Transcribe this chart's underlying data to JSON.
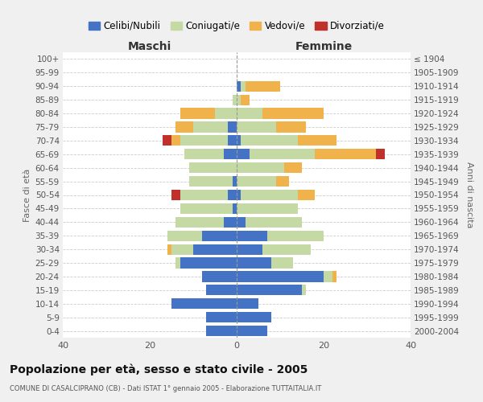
{
  "age_groups": [
    "100+",
    "95-99",
    "90-94",
    "85-89",
    "80-84",
    "75-79",
    "70-74",
    "65-69",
    "60-64",
    "55-59",
    "50-54",
    "45-49",
    "40-44",
    "35-39",
    "30-34",
    "25-29",
    "20-24",
    "15-19",
    "10-14",
    "5-9",
    "0-4"
  ],
  "birth_years": [
    "≤ 1904",
    "1905-1909",
    "1910-1914",
    "1915-1919",
    "1920-1924",
    "1925-1929",
    "1930-1934",
    "1935-1939",
    "1940-1944",
    "1945-1949",
    "1950-1954",
    "1955-1959",
    "1960-1964",
    "1965-1969",
    "1970-1974",
    "1975-1979",
    "1980-1984",
    "1985-1989",
    "1990-1994",
    "1995-1999",
    "2000-2004"
  ],
  "colors": {
    "celibi": "#4472C4",
    "coniugati": "#C5D9A5",
    "vedovi": "#F0B34C",
    "divorziati": "#C0312B"
  },
  "maschi": {
    "celibi": [
      0,
      0,
      0,
      0,
      0,
      2,
      2,
      3,
      0,
      1,
      2,
      1,
      3,
      8,
      10,
      13,
      8,
      7,
      15,
      7,
      7
    ],
    "coniugati": [
      0,
      0,
      0,
      1,
      5,
      8,
      11,
      9,
      11,
      10,
      11,
      12,
      11,
      8,
      5,
      1,
      0,
      0,
      0,
      0,
      0
    ],
    "vedovi": [
      0,
      0,
      0,
      0,
      8,
      4,
      2,
      0,
      0,
      0,
      0,
      0,
      0,
      0,
      1,
      0,
      0,
      0,
      0,
      0,
      0
    ],
    "divorziati": [
      0,
      0,
      0,
      0,
      0,
      0,
      2,
      0,
      0,
      0,
      2,
      0,
      0,
      0,
      0,
      0,
      0,
      0,
      0,
      0,
      0
    ]
  },
  "femmine": {
    "celibi": [
      0,
      0,
      1,
      0,
      0,
      0,
      1,
      3,
      0,
      0,
      1,
      0,
      2,
      7,
      6,
      8,
      20,
      15,
      5,
      8,
      7
    ],
    "coniugati": [
      0,
      0,
      1,
      1,
      6,
      9,
      13,
      15,
      11,
      9,
      13,
      14,
      13,
      13,
      11,
      5,
      2,
      1,
      0,
      0,
      0
    ],
    "vedovi": [
      0,
      0,
      8,
      2,
      14,
      7,
      9,
      14,
      4,
      3,
      4,
      0,
      0,
      0,
      0,
      0,
      1,
      0,
      0,
      0,
      0
    ],
    "divorziati": [
      0,
      0,
      0,
      0,
      0,
      0,
      0,
      2,
      0,
      0,
      0,
      0,
      0,
      0,
      0,
      0,
      0,
      0,
      0,
      0,
      0
    ]
  },
  "xlim": 40,
  "title": "Popolazione per età, sesso e stato civile - 2005",
  "subtitle": "COMUNE DI CASALCIPRANO (CB) - Dati ISTAT 1° gennaio 2005 - Elaborazione TUTTAITALIA.IT",
  "xlabel_left": "Maschi",
  "xlabel_right": "Femmine",
  "ylabel_left": "Fasce di età",
  "ylabel_right": "Anni di nascita",
  "legend_labels": [
    "Celibi/Nubili",
    "Coniugati/e",
    "Vedovi/e",
    "Divorziati/e"
  ],
  "bg_color": "#f0f0f0",
  "plot_bg": "#ffffff"
}
